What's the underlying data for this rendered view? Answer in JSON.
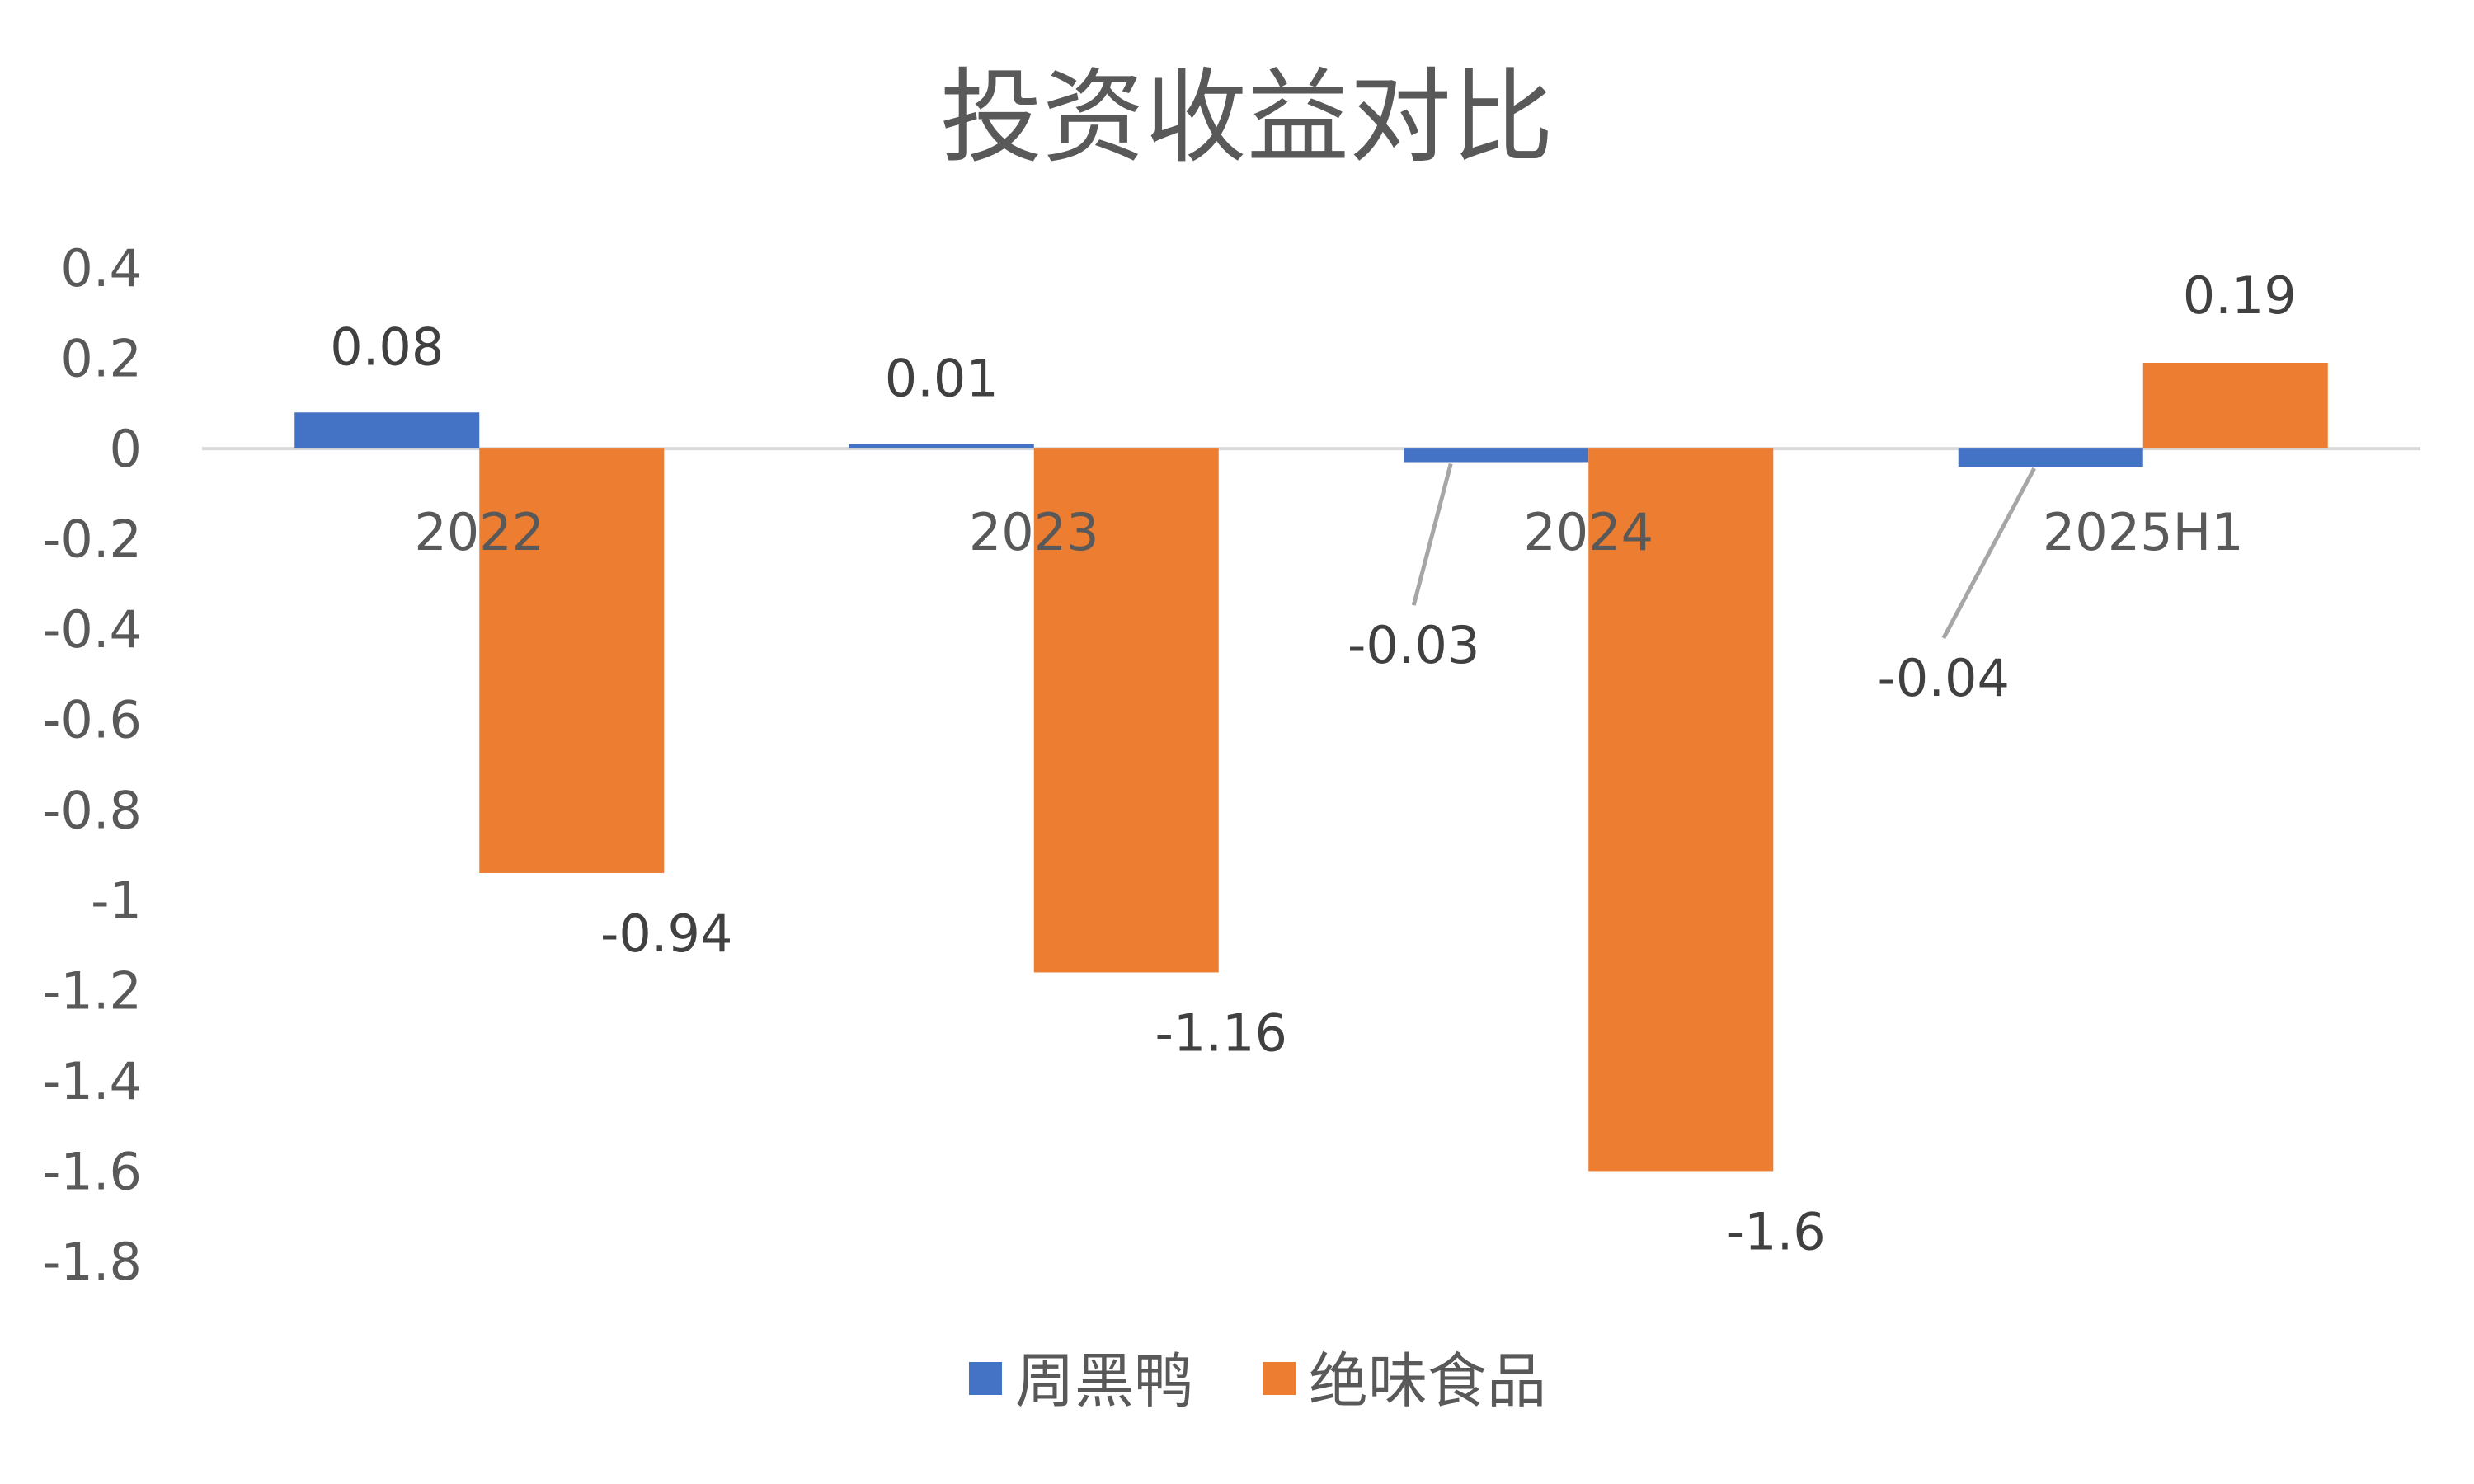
{
  "chart_data": {
    "type": "bar",
    "title": "投资收益对比",
    "categories": [
      "2022",
      "2023",
      "2024",
      "2025H1"
    ],
    "series": [
      {
        "name": "周黑鸭",
        "values": [
          0.08,
          0.01,
          -0.03,
          -0.04
        ],
        "color": "#4472C4"
      },
      {
        "name": "绝味食品",
        "values": [
          -0.94,
          -1.16,
          -1.6,
          0.19
        ],
        "color": "#ED7D31"
      }
    ],
    "data_labels": [
      [
        "0.08",
        "0.01",
        "-0.03",
        "-0.04"
      ],
      [
        "-0.94",
        "-1.16",
        "-1.6",
        "0.19"
      ]
    ],
    "ylim": [
      -1.8,
      0.4
    ],
    "yticks": [
      "0.4",
      "0.2",
      "0",
      "-0.2",
      "-0.4",
      "-0.6",
      "-0.8",
      "-1",
      "-1.2",
      "-1.4",
      "-1.6",
      "-1.8"
    ],
    "ytick_values": [
      0.4,
      0.2,
      0,
      -0.2,
      -0.4,
      -0.6,
      -0.8,
      -1,
      -1.2,
      -1.4,
      -1.6,
      -1.8
    ],
    "xlabel": "",
    "ylabel": "",
    "grid": false,
    "legend_position": "bottom",
    "axis_color": "#D9D9D9",
    "leader_line_color": "#A6A6A6"
  }
}
